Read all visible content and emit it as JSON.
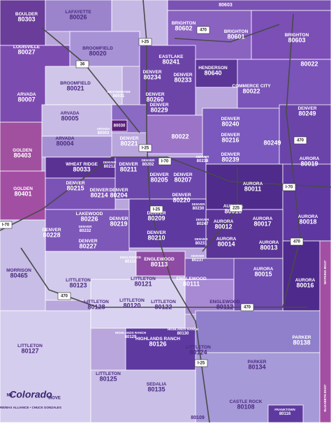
{
  "regions": [
    {
      "name": "BOULDER",
      "zip": "80303"
    },
    {
      "name": "LAFAYETTE",
      "zip": "80026"
    },
    {
      "zip": "80603"
    },
    {
      "name": "BRIGHTON",
      "zip": "80602"
    },
    {
      "name": "BRIGHTON",
      "zip": "80601"
    },
    {
      "name": "BRIGHTON",
      "zip": "80603"
    },
    {
      "name": "LOUISVILLE",
      "zip": "80027"
    },
    {
      "name": "BROOMFIELD",
      "zip": "80020"
    },
    {
      "name": "EASTLAKE",
      "zip": "80241"
    },
    {
      "name": "DENVER",
      "zip": "80234"
    },
    {
      "name": "DENVER",
      "zip": "80233"
    },
    {
      "name": "HENDERSON",
      "zip": "80640"
    },
    {
      "name": "BROOMFIELD",
      "zip": "80021"
    },
    {
      "name": "COMMERCE CITY",
      "zip": "80022"
    },
    {
      "zip": "80022"
    },
    {
      "name": "ARVADA",
      "zip": "80007"
    },
    {
      "name": "DENVER",
      "zip": "80260"
    },
    {
      "name": "WESTMINSTER",
      "zip": "80031"
    },
    {
      "name": "DENVER",
      "zip": "80229"
    },
    {
      "name": "ARVADA",
      "zip": "80005"
    },
    {
      "name": "DENVER",
      "zip": "80249"
    },
    {
      "name": "DENVER",
      "zip": "80240"
    },
    {
      "name": "ARVADA",
      "zip": "80003"
    },
    {
      "zip": "80030"
    },
    {
      "name": "ARVADA",
      "zip": "80004"
    },
    {
      "zip": "80022"
    },
    {
      "name": "DENVER",
      "zip": "80221"
    },
    {
      "zip": "80249"
    },
    {
      "name": "GOLDEN",
      "zip": "80403"
    },
    {
      "name": "DENVER",
      "zip": "80216"
    },
    {
      "name": "DENVER",
      "zip": "80239"
    },
    {
      "name": "AURORA",
      "zip": "80019"
    },
    {
      "name": "WHEAT RIDGE",
      "zip": "80033"
    },
    {
      "name": "DENVER",
      "zip": "80212"
    },
    {
      "name": "DENVER",
      "zip": "80211"
    },
    {
      "name": "DENVER",
      "zip": "80202"
    },
    {
      "name": "DENVER",
      "zip": "80238"
    },
    {
      "name": "DENVER",
      "zip": "80205"
    },
    {
      "name": "DENVER",
      "zip": "80207"
    },
    {
      "name": "DENVER",
      "zip": "80215"
    },
    {
      "name": "AURORA",
      "zip": "80011"
    },
    {
      "name": "GOLDEN",
      "zip": "80401"
    },
    {
      "name": "DENVER",
      "zip": "80214"
    },
    {
      "name": "DENVER",
      "zip": "80204"
    },
    {
      "name": "DENVER",
      "zip": "80220"
    },
    {
      "name": "DENVER",
      "zip": "80230"
    },
    {
      "name": "AURORA",
      "zip": "80010"
    },
    {
      "name": "LAKEWOOD",
      "zip": "80226"
    },
    {
      "name": "DENVER",
      "zip": "80219"
    },
    {
      "name": "DENVER",
      "zip": "80209"
    },
    {
      "name": "DENVER",
      "zip": "80247"
    },
    {
      "name": "AURORA",
      "zip": "80012"
    },
    {
      "name": "AURORA",
      "zip": "80017"
    },
    {
      "name": "AURORA",
      "zip": "80018"
    },
    {
      "name": "DENVER",
      "zip": "80228"
    },
    {
      "name": "DENVER",
      "zip": "80232"
    },
    {
      "name": "DENVER",
      "zip": "80210"
    },
    {
      "name": "DENVER",
      "zip": "80227"
    },
    {
      "name": "DENVER",
      "zip": "80231"
    },
    {
      "name": "AURORA",
      "zip": "80014"
    },
    {
      "name": "AURORA",
      "zip": "80013"
    },
    {
      "name": "ENGLEWOOD",
      "zip": "80110"
    },
    {
      "name": "ENGLEWOOD",
      "zip": "80113"
    },
    {
      "name": "DENVER",
      "zip": "80237"
    },
    {
      "name": "MORRISON",
      "zip": "80465"
    },
    {
      "name": "AURORA",
      "zip": "80015"
    },
    {
      "name": "LITTLETON",
      "zip": "80123"
    },
    {
      "name": "LITTLETON",
      "zip": "80121"
    },
    {
      "name": "ENGLEWOOD",
      "zip": "80111"
    },
    {
      "name": "AURORA",
      "zip": "80016"
    },
    {
      "name": "ENGLEWOOD",
      "zip": "80112"
    },
    {
      "name": "LITTLETON",
      "zip": "80128"
    },
    {
      "name": "LITTLETON",
      "zip": "80120"
    },
    {
      "name": "LITTLETON",
      "zip": "80122"
    },
    {
      "name": "HIGHLANDS RANCH",
      "zip": "80129"
    },
    {
      "name": "HIGHLANDS RANCH",
      "zip": "80126"
    },
    {
      "name": "HIGHLANDS RANCH",
      "zip": "80130"
    },
    {
      "name": "PARKER",
      "zip": "80138"
    },
    {
      "name": "LITTLETON",
      "zip": "80127"
    },
    {
      "name": "LITTLETON",
      "zip": "80124"
    },
    {
      "name": "PARKER",
      "zip": "80134"
    },
    {
      "name": "LITTLETON",
      "zip": "80125"
    },
    {
      "name": "SEDALIA",
      "zip": "80135"
    },
    {
      "name": "CASTLE ROCK",
      "zip": "80108"
    },
    {
      "name": "FRANKTOWN",
      "zip": "80116"
    },
    {
      "zip": "80109"
    }
  ],
  "edge_labels": [
    "WATKINS 80137",
    "ELIZABETH 80107"
  ],
  "highways": [
    "I-25",
    "470",
    "36",
    "I-70",
    "225"
  ],
  "branding": {
    "my": "MY",
    "logo": "Colorado",
    "move": "MOVE",
    "agent": "RE/MAX ALLIANCE • CHUCK GONZALES"
  }
}
